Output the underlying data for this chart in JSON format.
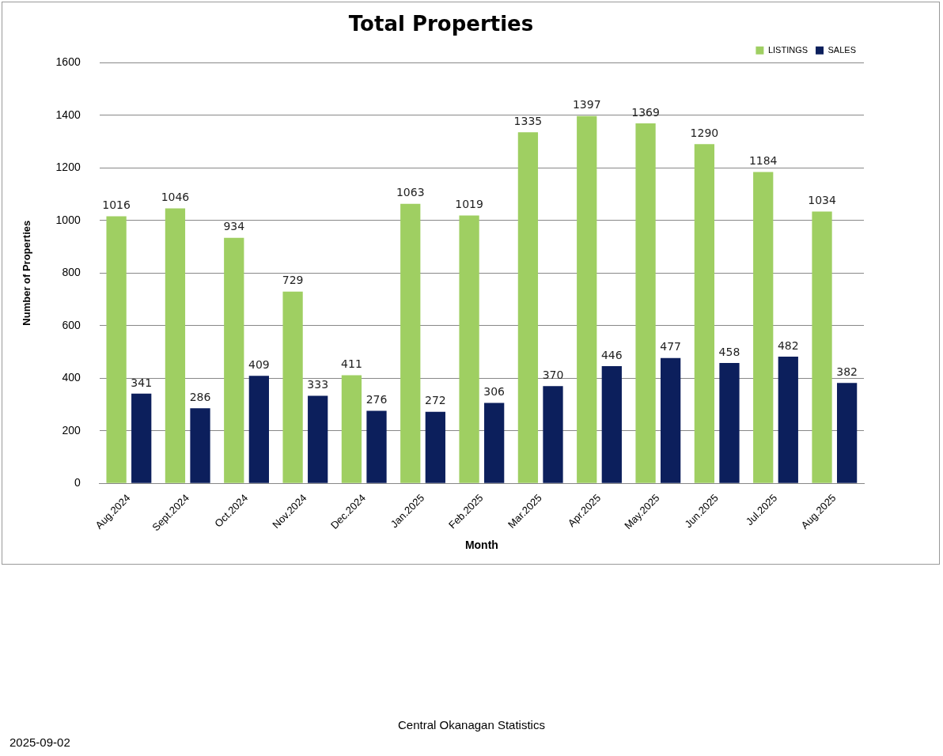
{
  "chart_data": {
    "type": "bar",
    "title": "Total Properties",
    "xlabel": "Month",
    "ylabel": "Number of Properties",
    "categories": [
      "Aug.2024",
      "Sept.2024",
      "Oct.2024",
      "Nov.2024",
      "Dec.2024",
      "Jan.2025",
      "Feb.2025",
      "Mar.2025",
      "Apr.2025",
      "May.2025",
      "Jun.2025",
      "Jul.2025",
      "Aug.2025"
    ],
    "series": [
      {
        "name": "LISTINGS",
        "color": "#9fcf62",
        "values": [
          1016,
          1046,
          934,
          729,
          411,
          1063,
          1019,
          1335,
          1397,
          1369,
          1290,
          1184,
          1034
        ]
      },
      {
        "name": "SALES",
        "color": "#0c1f5c",
        "values": [
          341,
          286,
          409,
          333,
          276,
          272,
          306,
          370,
          446,
          477,
          458,
          482,
          382
        ]
      }
    ],
    "ylim": [
      0,
      1600
    ],
    "yticks": [
      0,
      200,
      400,
      600,
      800,
      1000,
      1200,
      1400,
      1600
    ],
    "grid": "y",
    "legend": "top right",
    "data_labels": true,
    "annotations": [
      "2025-09-02",
      "Central Okanagan Statistics"
    ]
  }
}
